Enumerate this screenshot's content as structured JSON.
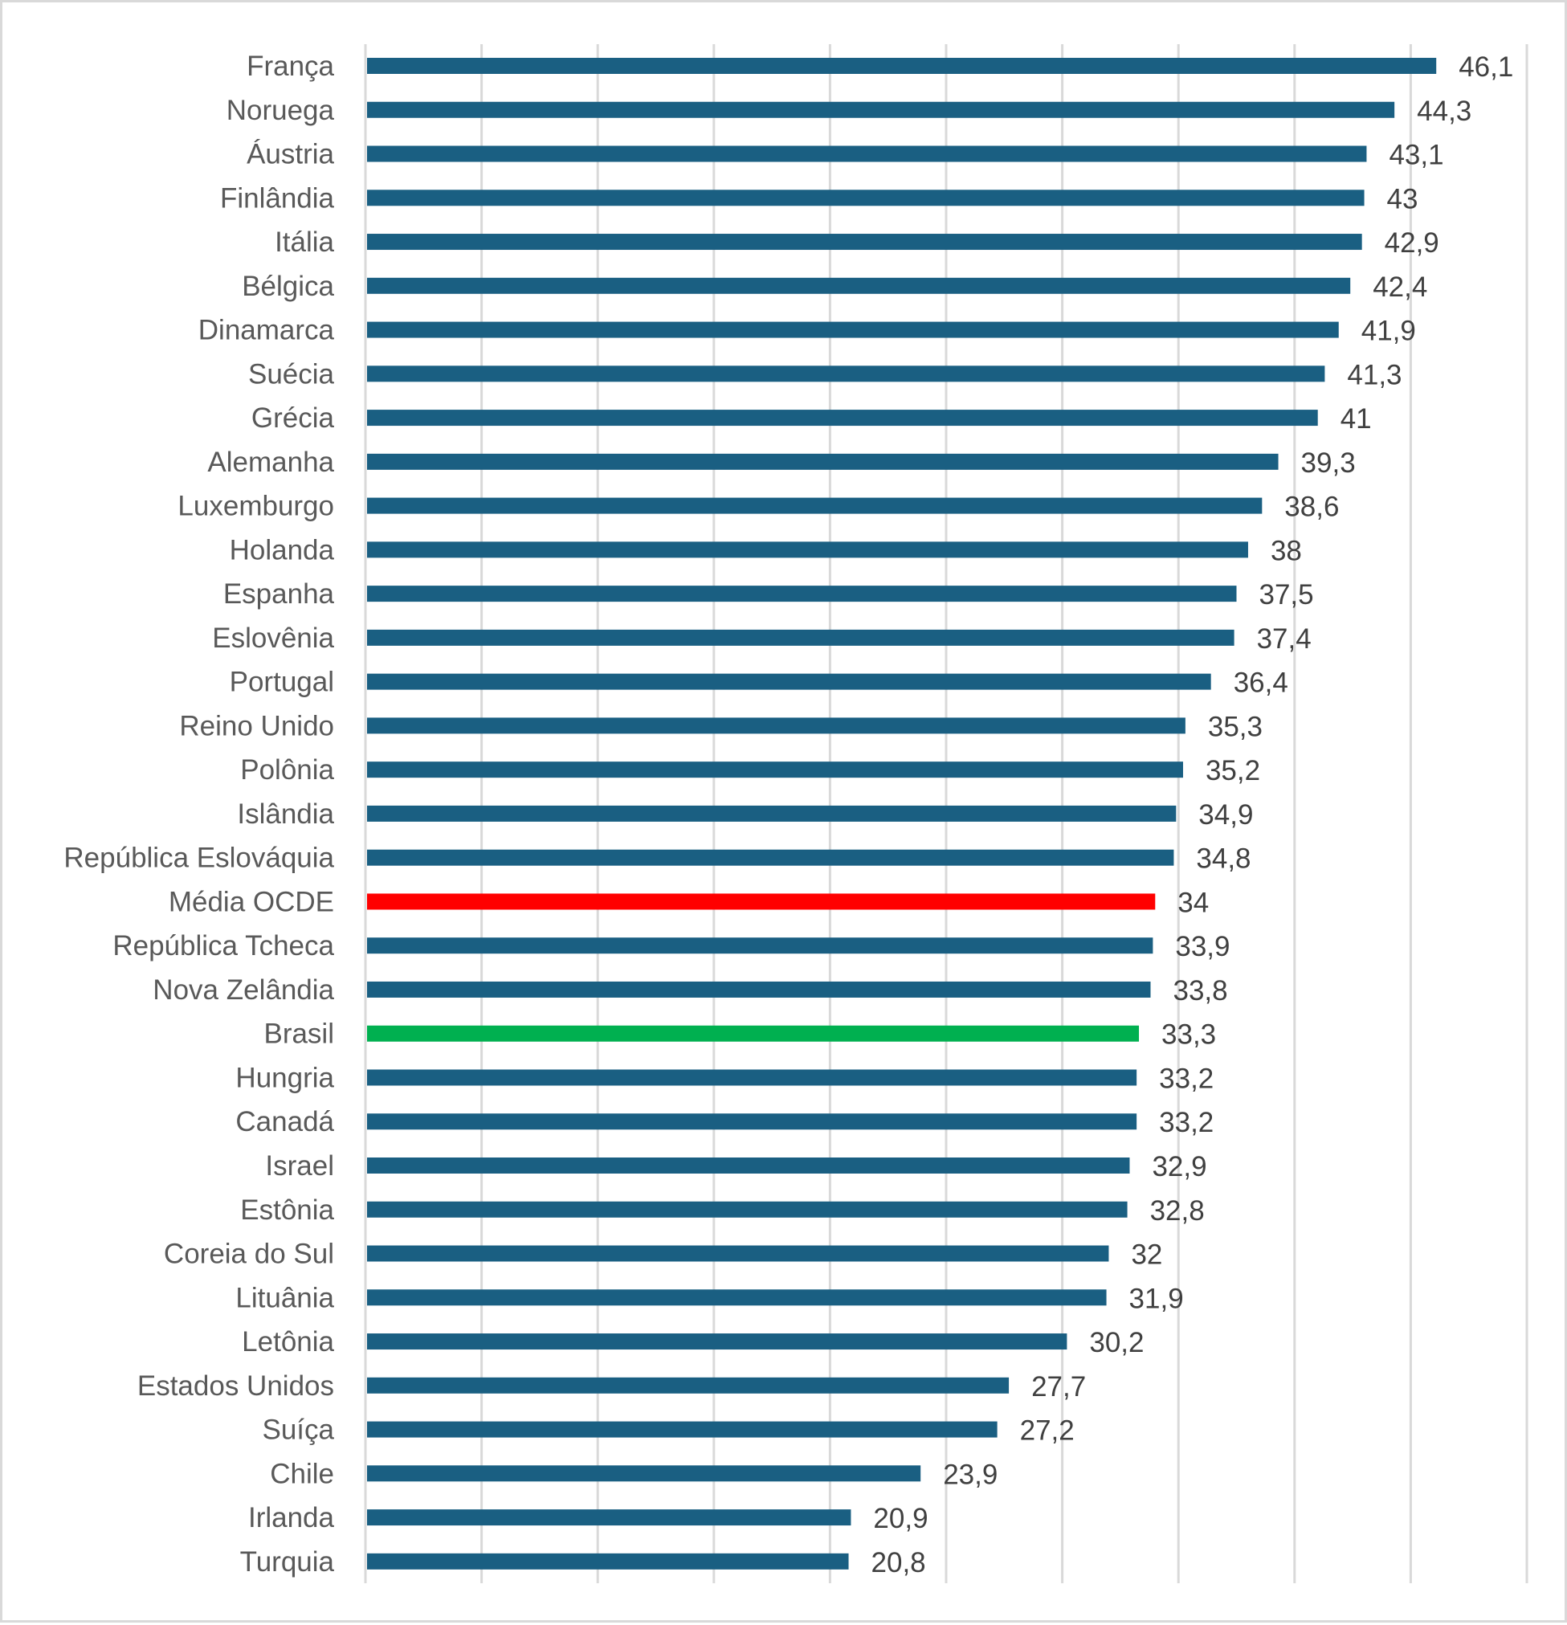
{
  "chart_data": {
    "type": "bar",
    "orientation": "horizontal",
    "title": "",
    "xlabel": "",
    "ylabel": "",
    "xlim": [
      0,
      50
    ],
    "major_tick_step": 5,
    "grid": true,
    "legend": "none",
    "show_x_tick_labels": false,
    "decimal_separator": ",",
    "colors": {
      "default": "#1A5F82",
      "highlight_average": "#FF0000",
      "highlight_country": "#00B050"
    },
    "categories": [
      "França",
      "Noruega",
      "Áustria",
      "Finlândia",
      "Itália",
      "Bélgica",
      "Dinamarca",
      "Suécia",
      "Grécia",
      "Alemanha",
      "Luxemburgo",
      "Holanda",
      "Espanha",
      "Eslovênia",
      "Portugal",
      "Reino Unido",
      "Polônia",
      "Islândia",
      "República Eslováquia",
      "Média OCDE",
      "República Tcheca",
      "Nova Zelândia",
      "Brasil",
      "Hungria",
      "Canadá",
      "Israel",
      "Estônia",
      "Coreia do Sul",
      "Lituânia",
      "Letônia",
      "Estados Unidos",
      "Suíça",
      "Chile",
      "Irlanda",
      "Turquia"
    ],
    "values": [
      46.1,
      44.3,
      43.1,
      43,
      42.9,
      42.4,
      41.9,
      41.3,
      41,
      39.3,
      38.6,
      38,
      37.5,
      37.4,
      36.4,
      35.3,
      35.2,
      34.9,
      34.8,
      34,
      33.9,
      33.8,
      33.3,
      33.2,
      33.2,
      32.9,
      32.8,
      32,
      31.9,
      30.2,
      27.7,
      27.2,
      23.9,
      20.9,
      20.8
    ],
    "data_labels": [
      "46,1",
      "44,3",
      "43,1",
      "43",
      "42,9",
      "42,4",
      "41,9",
      "41,3",
      "41",
      "39,3",
      "38,6",
      "38",
      "37,5",
      "37,4",
      "36,4",
      "35,3",
      "35,2",
      "34,9",
      "34,8",
      "34",
      "33,9",
      "33,8",
      "33,3",
      "33,2",
      "33,2",
      "32,9",
      "32,8",
      "32",
      "31,9",
      "30,2",
      "27,7",
      "27,2",
      "23,9",
      "20,9",
      "20,8"
    ],
    "highlights": {
      "Média OCDE": "highlight_average",
      "Brasil": "highlight_country"
    }
  }
}
